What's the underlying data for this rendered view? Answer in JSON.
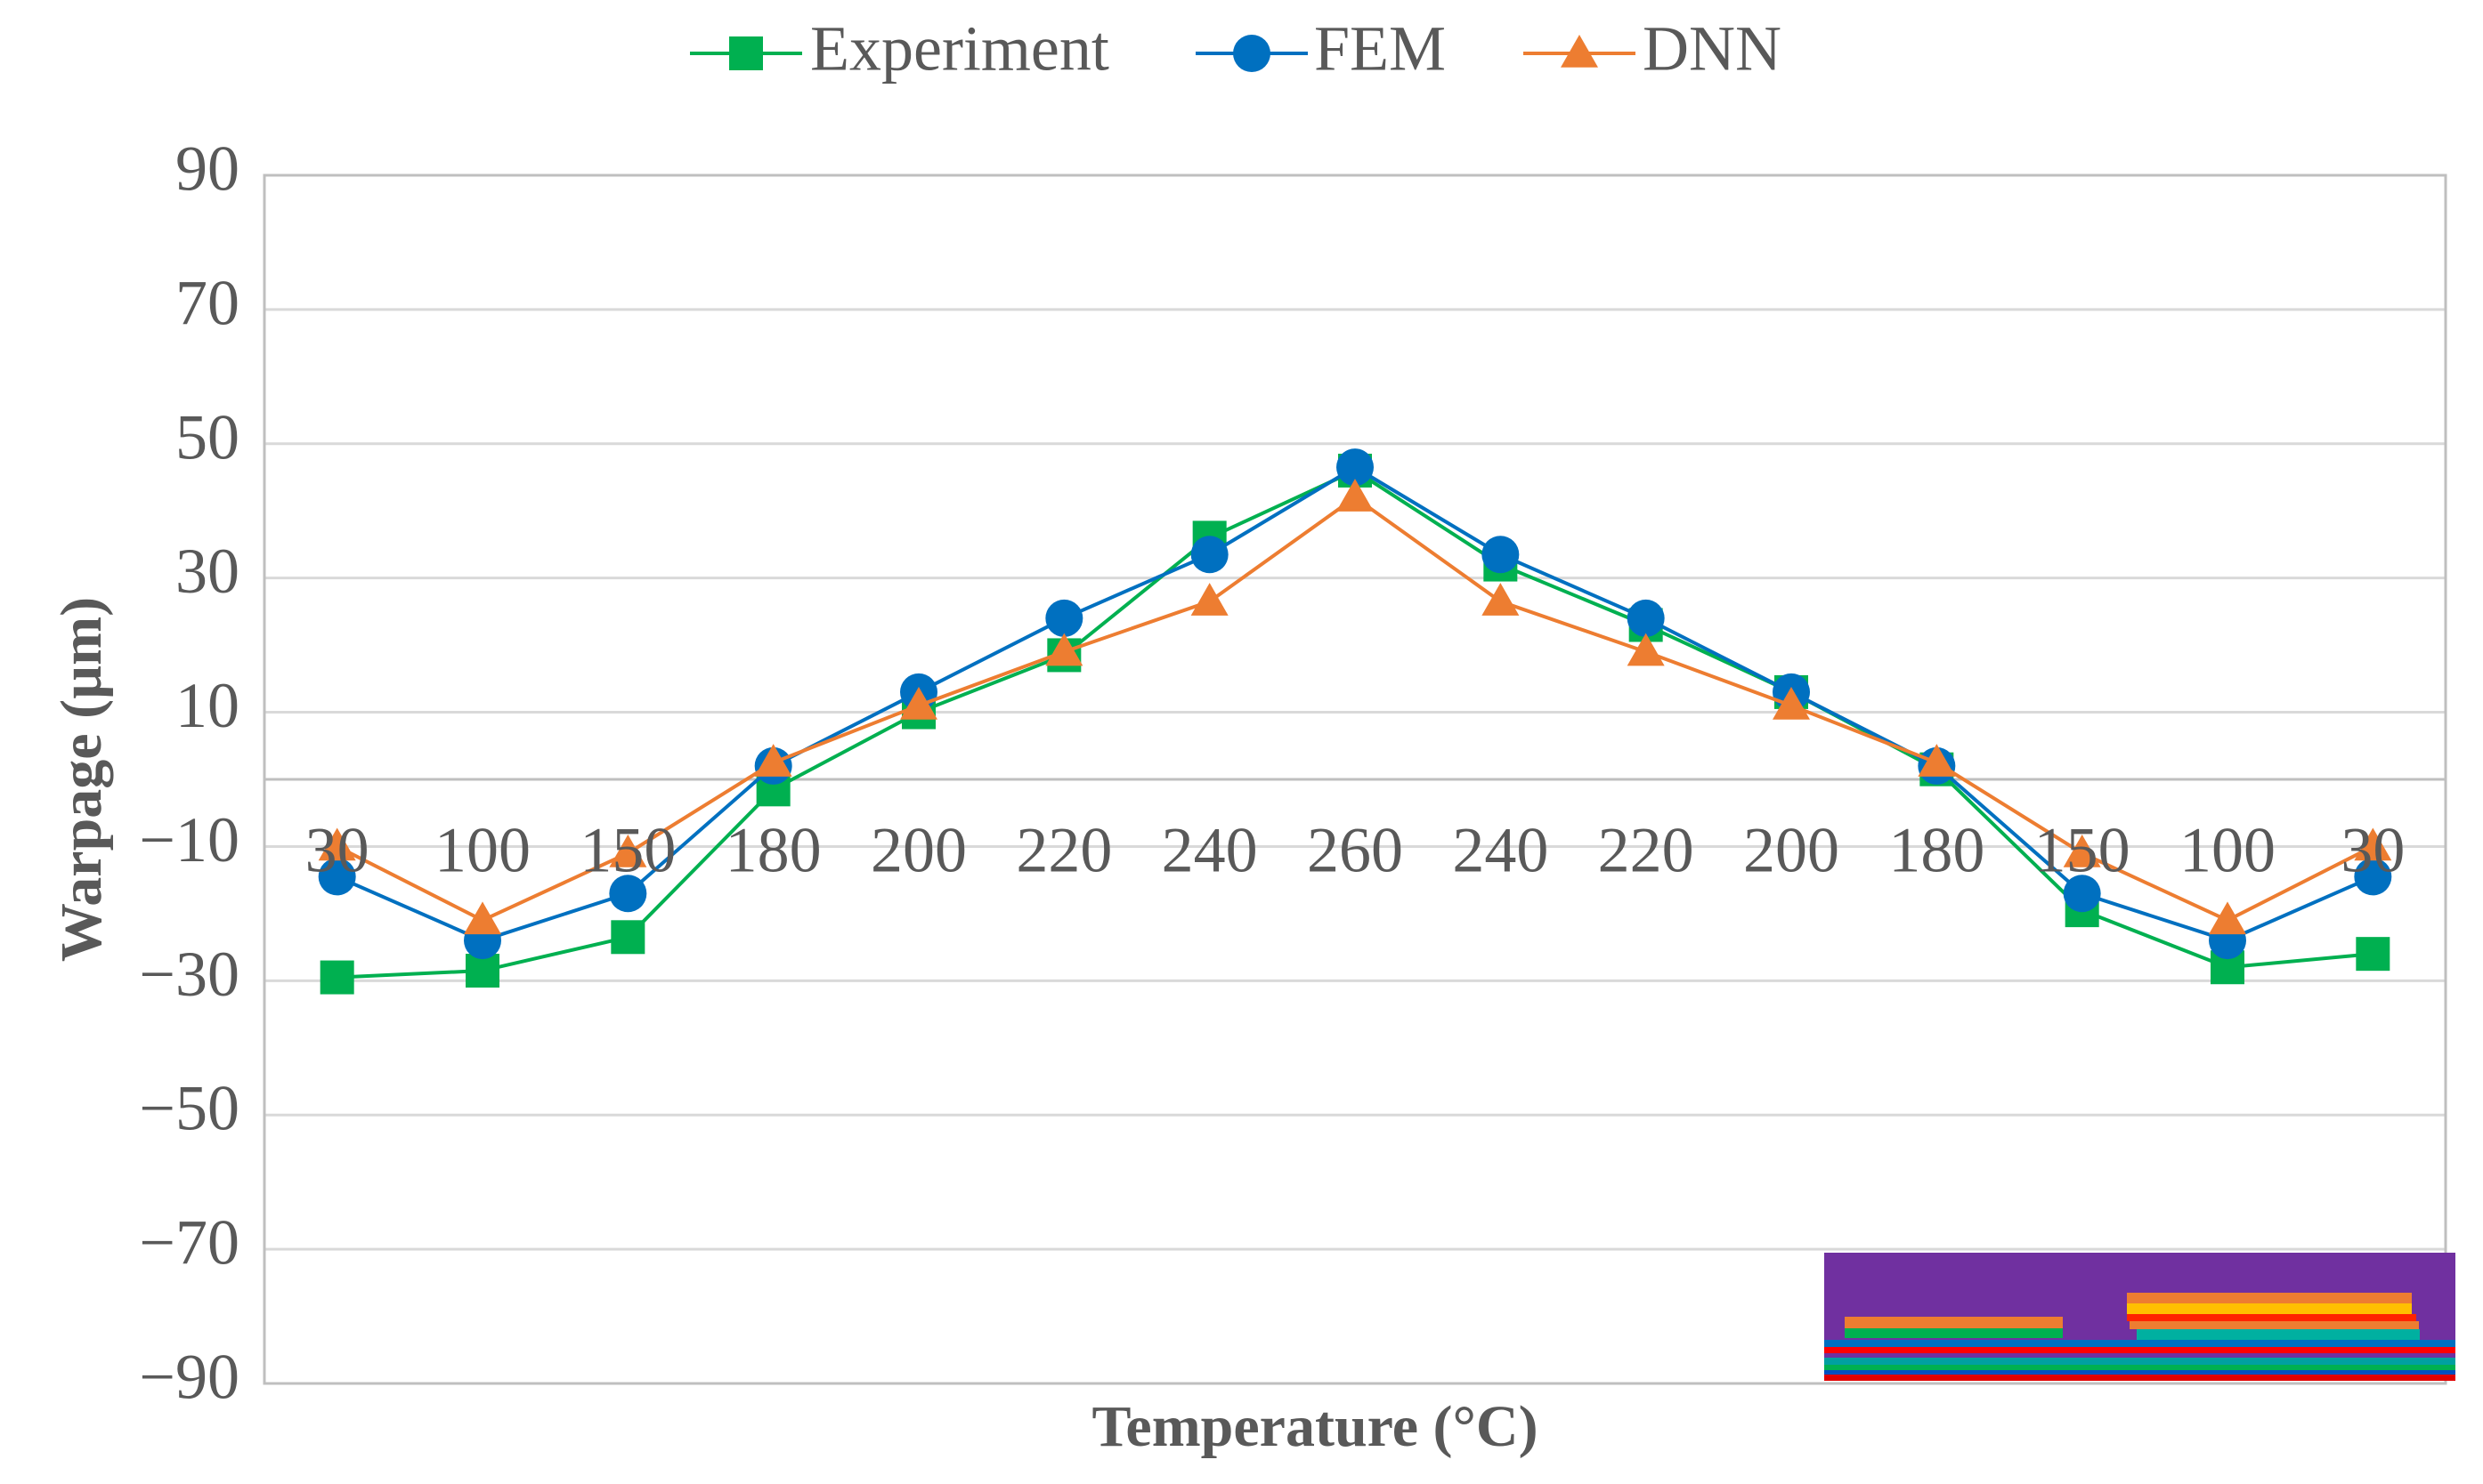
{
  "chart_data": {
    "type": "line",
    "title": "",
    "xlabel": "Temperature (°C)",
    "ylabel": "Warpage (µm)",
    "categories": [
      "30",
      "100",
      "150",
      "180",
      "200",
      "220",
      "240",
      "260",
      "240",
      "220",
      "200",
      "180",
      "150",
      "100",
      "30"
    ],
    "y_ticks": [
      "90",
      "70",
      "50",
      "30",
      "10",
      "−10",
      "−30",
      "−50",
      "−70",
      "−90"
    ],
    "ylim": [
      -90,
      90
    ],
    "grid": true,
    "legend_position": "top",
    "series": [
      {
        "name": "Experiment",
        "color": "#00b050",
        "marker": "square",
        "values": [
          -29.5,
          -28.5,
          -23.5,
          -1.5,
          10,
          18.5,
          36,
          46,
          32,
          23,
          13,
          1.5,
          -19.5,
          -28,
          -26
        ]
      },
      {
        "name": "FEM",
        "color": "#0070c0",
        "marker": "circle",
        "values": [
          -14.5,
          -24,
          -17,
          2,
          13,
          24,
          33.5,
          46.5,
          33.5,
          24,
          13,
          2,
          -17,
          -24,
          -14.5
        ]
      },
      {
        "name": "DNN",
        "color": "#ed7d31",
        "marker": "triangle",
        "values": [
          -10,
          -21,
          -11,
          2.5,
          11,
          19,
          26.5,
          42,
          26.5,
          19,
          11,
          2.5,
          -11,
          -21,
          -10
        ]
      }
    ]
  }
}
